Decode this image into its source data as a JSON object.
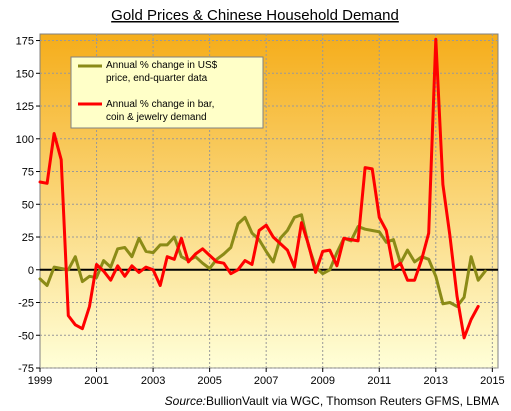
{
  "chart_data": {
    "type": "line",
    "title": "Gold Prices & Chinese Household Demand",
    "source_label": "Source:",
    "source_text": "BullionVault via WGC, Thomson Reuters GFMS, LBMA",
    "x_ticks": [
      "1999",
      "2001",
      "2003",
      "2005",
      "2007",
      "2009",
      "2011",
      "2013",
      "2015"
    ],
    "y_ticks": [
      "175",
      "150",
      "125",
      "100",
      "75",
      "50",
      "25",
      "0",
      "-25",
      "-50",
      "-75"
    ],
    "xlim": [
      1999.0,
      2015.2
    ],
    "ylim": [
      -75,
      180
    ],
    "grid": true,
    "legend_position": "top-left",
    "colors": {
      "background_top": "#f5ad1a",
      "background_bottom": "#ffffd8",
      "zero_line": "#000000"
    },
    "series": [
      {
        "name": "Annual % change in US$ price, end-quarter data",
        "color": "#8b8b17",
        "points": [
          [
            1999.0,
            -7
          ],
          [
            1999.25,
            -12
          ],
          [
            1999.5,
            2
          ],
          [
            1999.75,
            1
          ],
          [
            2000.0,
            0
          ],
          [
            2000.25,
            10
          ],
          [
            2000.5,
            -9
          ],
          [
            2000.75,
            -5
          ],
          [
            2001.0,
            -6
          ],
          [
            2001.25,
            7
          ],
          [
            2001.5,
            2
          ],
          [
            2001.75,
            16
          ],
          [
            2002.0,
            17
          ],
          [
            2002.25,
            10
          ],
          [
            2002.5,
            24
          ],
          [
            2002.75,
            14
          ],
          [
            2003.0,
            13
          ],
          [
            2003.25,
            19
          ],
          [
            2003.5,
            19
          ],
          [
            2003.75,
            25
          ],
          [
            2004.0,
            10
          ],
          [
            2004.25,
            7
          ],
          [
            2004.5,
            10
          ],
          [
            2004.75,
            5
          ],
          [
            2005.0,
            1
          ],
          [
            2005.25,
            8
          ],
          [
            2005.5,
            12
          ],
          [
            2005.75,
            17
          ],
          [
            2006.0,
            35
          ],
          [
            2006.25,
            40
          ],
          [
            2006.5,
            28
          ],
          [
            2006.75,
            23
          ],
          [
            2007.0,
            14
          ],
          [
            2007.25,
            6
          ],
          [
            2007.5,
            24
          ],
          [
            2007.75,
            30
          ],
          [
            2008.0,
            40
          ],
          [
            2008.25,
            42
          ],
          [
            2008.5,
            18
          ],
          [
            2008.75,
            2
          ],
          [
            2009.0,
            -3
          ],
          [
            2009.25,
            0
          ],
          [
            2009.5,
            13
          ],
          [
            2009.75,
            24
          ],
          [
            2010.0,
            22
          ],
          [
            2010.25,
            33
          ],
          [
            2010.5,
            31
          ],
          [
            2010.75,
            30
          ],
          [
            2011.0,
            29
          ],
          [
            2011.25,
            21
          ],
          [
            2011.5,
            23
          ],
          [
            2011.75,
            5
          ],
          [
            2012.0,
            15
          ],
          [
            2012.25,
            6
          ],
          [
            2012.5,
            10
          ],
          [
            2012.75,
            8
          ],
          [
            2013.0,
            -5
          ],
          [
            2013.25,
            -26
          ],
          [
            2013.5,
            -25
          ],
          [
            2013.75,
            -28
          ],
          [
            2014.0,
            -21
          ],
          [
            2014.25,
            10
          ],
          [
            2014.5,
            -8
          ],
          [
            2014.75,
            -1
          ]
        ]
      },
      {
        "name": "Annual % change in bar, coin & jewelry demand",
        "color": "#ff0000",
        "points": [
          [
            1999.0,
            67
          ],
          [
            1999.25,
            66
          ],
          [
            1999.5,
            104
          ],
          [
            1999.75,
            84
          ],
          [
            2000.0,
            -35
          ],
          [
            2000.25,
            -42
          ],
          [
            2000.5,
            -45
          ],
          [
            2000.75,
            -28
          ],
          [
            2001.0,
            4
          ],
          [
            2001.25,
            -1
          ],
          [
            2001.5,
            -8
          ],
          [
            2001.75,
            3
          ],
          [
            2002.0,
            -5
          ],
          [
            2002.25,
            3
          ],
          [
            2002.5,
            -2
          ],
          [
            2002.75,
            2
          ],
          [
            2003.0,
            0
          ],
          [
            2003.25,
            -12
          ],
          [
            2003.5,
            10
          ],
          [
            2003.75,
            8
          ],
          [
            2004.0,
            24
          ],
          [
            2004.25,
            6
          ],
          [
            2004.5,
            12
          ],
          [
            2004.75,
            16
          ],
          [
            2005.0,
            11
          ],
          [
            2005.25,
            6
          ],
          [
            2005.5,
            5
          ],
          [
            2005.75,
            -3
          ],
          [
            2006.0,
            0
          ],
          [
            2006.25,
            7
          ],
          [
            2006.5,
            4
          ],
          [
            2006.75,
            30
          ],
          [
            2007.0,
            34
          ],
          [
            2007.25,
            25
          ],
          [
            2007.5,
            20
          ],
          [
            2007.75,
            15
          ],
          [
            2008.0,
            2
          ],
          [
            2008.25,
            36
          ],
          [
            2008.5,
            19
          ],
          [
            2008.75,
            -2
          ],
          [
            2009.0,
            14
          ],
          [
            2009.25,
            15
          ],
          [
            2009.5,
            3
          ],
          [
            2009.75,
            24
          ],
          [
            2010.0,
            23
          ],
          [
            2010.25,
            22
          ],
          [
            2010.5,
            78
          ],
          [
            2010.75,
            77
          ],
          [
            2011.0,
            40
          ],
          [
            2011.25,
            30
          ],
          [
            2011.5,
            1
          ],
          [
            2011.75,
            5
          ],
          [
            2012.0,
            -8
          ],
          [
            2012.25,
            -8
          ],
          [
            2012.5,
            8
          ],
          [
            2012.75,
            28
          ],
          [
            2013.0,
            176
          ],
          [
            2013.25,
            65
          ],
          [
            2013.5,
            26
          ],
          [
            2013.75,
            -20
          ],
          [
            2014.0,
            -52
          ],
          [
            2014.25,
            -38
          ],
          [
            2014.5,
            -28
          ]
        ]
      }
    ]
  }
}
